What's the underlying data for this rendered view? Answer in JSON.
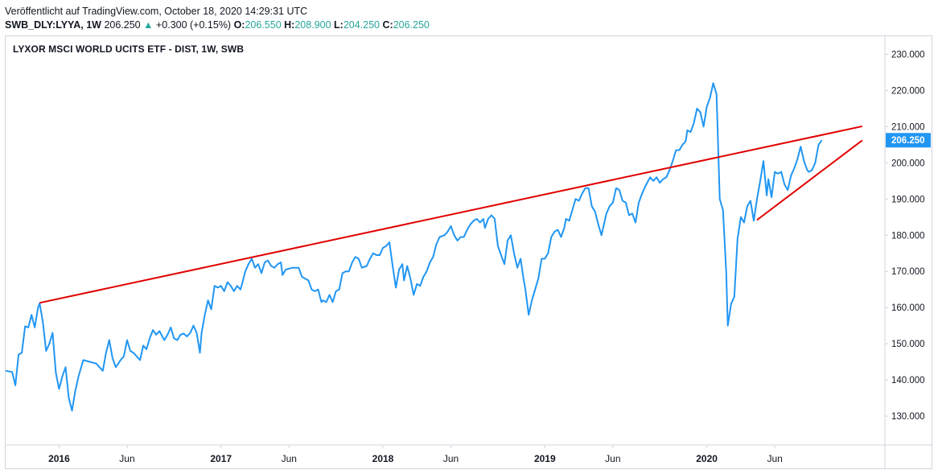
{
  "header": {
    "published": "Veröffentlicht auf TradingView.com, October 18, 2020 14:29:31 UTC",
    "symbol": "SWB_DLY:LYYA, 1W",
    "last": "206.250",
    "change_arrow": "▲",
    "change": "+0.300 (+0.15%)",
    "open_label": "O:",
    "open": "206.550",
    "high_label": "H:",
    "high": "208.900",
    "low_label": "L:",
    "low": "204.250",
    "close_label": "C:",
    "close": "206.250"
  },
  "colors": {
    "line": "#2196f3",
    "trendline": "#e00000",
    "up": "#26a69a",
    "grid": "#d1d4dc",
    "price_tag": "#2196f3"
  },
  "chart_data": {
    "type": "line",
    "title": "LYXOR MSCI WORLD UCITS ETF - DIST, 1W, SWB",
    "ylim": [
      122,
      235
    ],
    "y_ticks": [
      "130.000",
      "140.000",
      "150.000",
      "160.000",
      "170.000",
      "180.000",
      "190.000",
      "200.000",
      "210.000",
      "220.000",
      "230.000"
    ],
    "x_ticks": [
      {
        "label": "2016",
        "t": 2016.0
      },
      {
        "label": "Jun",
        "t": 2016.42
      },
      {
        "label": "2017",
        "t": 2017.0
      },
      {
        "label": "Jun",
        "t": 2017.42
      },
      {
        "label": "2018",
        "t": 2018.0
      },
      {
        "label": "Jun",
        "t": 2018.42
      },
      {
        "label": "2019",
        "t": 2019.0
      },
      {
        "label": "Jun",
        "t": 2019.42
      },
      {
        "label": "2020",
        "t": 2020.0
      },
      {
        "label": "Jun",
        "t": 2020.42
      }
    ],
    "xlim": [
      2015.67,
      2021.1
    ],
    "last_price_label": "206.250",
    "last_price": 206.25,
    "series": [
      {
        "name": "LYYA close",
        "points": [
          [
            2015.67,
            142.5
          ],
          [
            2015.71,
            142.2
          ],
          [
            2015.73,
            138.5
          ],
          [
            2015.75,
            147
          ],
          [
            2015.77,
            147.5
          ],
          [
            2015.79,
            154.8
          ],
          [
            2015.81,
            154.5
          ],
          [
            2015.83,
            158
          ],
          [
            2015.85,
            154.5
          ],
          [
            2015.87,
            160
          ],
          [
            2015.88,
            161.2
          ],
          [
            2015.9,
            156
          ],
          [
            2015.92,
            148
          ],
          [
            2015.94,
            150
          ],
          [
            2015.96,
            153
          ],
          [
            2015.98,
            142
          ],
          [
            2016.0,
            137.5
          ],
          [
            2016.02,
            141
          ],
          [
            2016.04,
            143.5
          ],
          [
            2016.06,
            135
          ],
          [
            2016.08,
            131.5
          ],
          [
            2016.1,
            137
          ],
          [
            2016.12,
            141
          ],
          [
            2016.15,
            145.5
          ],
          [
            2016.19,
            145
          ],
          [
            2016.23,
            144.5
          ],
          [
            2016.27,
            142.5
          ],
          [
            2016.29,
            147.5
          ],
          [
            2016.31,
            151
          ],
          [
            2016.33,
            146
          ],
          [
            2016.35,
            143.5
          ],
          [
            2016.38,
            145.5
          ],
          [
            2016.4,
            146.5
          ],
          [
            2016.42,
            151
          ],
          [
            2016.44,
            148
          ],
          [
            2016.46,
            147.5
          ],
          [
            2016.5,
            145.5
          ],
          [
            2016.52,
            149.5
          ],
          [
            2016.54,
            148.5
          ],
          [
            2016.56,
            151.5
          ],
          [
            2016.58,
            153.8
          ],
          [
            2016.6,
            152.5
          ],
          [
            2016.62,
            153.5
          ],
          [
            2016.65,
            151
          ],
          [
            2016.67,
            152.5
          ],
          [
            2016.69,
            154.5
          ],
          [
            2016.71,
            151.5
          ],
          [
            2016.73,
            151
          ],
          [
            2016.75,
            152.5
          ],
          [
            2016.77,
            152.8
          ],
          [
            2016.79,
            152
          ],
          [
            2016.81,
            153
          ],
          [
            2016.83,
            155
          ],
          [
            2016.85,
            153
          ],
          [
            2016.87,
            147.5
          ],
          [
            2016.88,
            153
          ],
          [
            2016.9,
            158
          ],
          [
            2016.92,
            162
          ],
          [
            2016.94,
            159.5
          ],
          [
            2016.96,
            166
          ],
          [
            2016.98,
            165.5
          ],
          [
            2017.0,
            166
          ],
          [
            2017.02,
            164.5
          ],
          [
            2017.04,
            167
          ],
          [
            2017.06,
            166
          ],
          [
            2017.08,
            164.5
          ],
          [
            2017.1,
            166
          ],
          [
            2017.12,
            165
          ],
          [
            2017.13,
            166.5
          ],
          [
            2017.15,
            170
          ],
          [
            2017.17,
            172
          ],
          [
            2017.19,
            173.5
          ],
          [
            2017.21,
            171
          ],
          [
            2017.23,
            172
          ],
          [
            2017.25,
            169.5
          ],
          [
            2017.27,
            172.5
          ],
          [
            2017.29,
            173
          ],
          [
            2017.31,
            171.5
          ],
          [
            2017.33,
            171
          ],
          [
            2017.35,
            172
          ],
          [
            2017.37,
            172.5
          ],
          [
            2017.38,
            169
          ],
          [
            2017.4,
            170.5
          ],
          [
            2017.44,
            171
          ],
          [
            2017.48,
            171
          ],
          [
            2017.5,
            168.5
          ],
          [
            2017.54,
            167.5
          ],
          [
            2017.56,
            165
          ],
          [
            2017.58,
            164.5
          ],
          [
            2017.6,
            165
          ],
          [
            2017.62,
            161.5
          ],
          [
            2017.63,
            162
          ],
          [
            2017.65,
            161.5
          ],
          [
            2017.67,
            163.5
          ],
          [
            2017.69,
            161.5
          ],
          [
            2017.71,
            164.5
          ],
          [
            2017.73,
            165
          ],
          [
            2017.75,
            169.5
          ],
          [
            2017.77,
            170
          ],
          [
            2017.79,
            170
          ],
          [
            2017.81,
            172.5
          ],
          [
            2017.83,
            174
          ],
          [
            2017.85,
            173.5
          ],
          [
            2017.87,
            171
          ],
          [
            2017.9,
            171.5
          ],
          [
            2017.92,
            173.5
          ],
          [
            2017.94,
            175
          ],
          [
            2017.96,
            174.5
          ],
          [
            2017.98,
            174.5
          ],
          [
            2018.0,
            176.5
          ],
          [
            2018.02,
            177
          ],
          [
            2018.04,
            178
          ],
          [
            2018.06,
            171.5
          ],
          [
            2018.08,
            165.5
          ],
          [
            2018.1,
            170.5
          ],
          [
            2018.12,
            172
          ],
          [
            2018.13,
            167.5
          ],
          [
            2018.15,
            171.5
          ],
          [
            2018.17,
            168
          ],
          [
            2018.19,
            163.5
          ],
          [
            2018.21,
            166.5
          ],
          [
            2018.23,
            166
          ],
          [
            2018.25,
            168.5
          ],
          [
            2018.27,
            170
          ],
          [
            2018.29,
            172.5
          ],
          [
            2018.31,
            174
          ],
          [
            2018.33,
            177.5
          ],
          [
            2018.35,
            179.5
          ],
          [
            2018.38,
            180
          ],
          [
            2018.4,
            181
          ],
          [
            2018.42,
            182.5
          ],
          [
            2018.44,
            180
          ],
          [
            2018.46,
            178.5
          ],
          [
            2018.48,
            179.5
          ],
          [
            2018.5,
            179.5
          ],
          [
            2018.52,
            181.5
          ],
          [
            2018.54,
            183
          ],
          [
            2018.56,
            184
          ],
          [
            2018.58,
            184.5
          ],
          [
            2018.6,
            183.5
          ],
          [
            2018.62,
            184.5
          ],
          [
            2018.63,
            182
          ],
          [
            2018.65,
            184.5
          ],
          [
            2018.67,
            185.5
          ],
          [
            2018.69,
            184.5
          ],
          [
            2018.71,
            177
          ],
          [
            2018.73,
            174.5
          ],
          [
            2018.75,
            172
          ],
          [
            2018.77,
            178.5
          ],
          [
            2018.79,
            180
          ],
          [
            2018.81,
            175
          ],
          [
            2018.83,
            171
          ],
          [
            2018.85,
            173.5
          ],
          [
            2018.87,
            167.5
          ],
          [
            2018.88,
            165
          ],
          [
            2018.9,
            158
          ],
          [
            2018.92,
            162
          ],
          [
            2018.94,
            165
          ],
          [
            2018.96,
            168
          ],
          [
            2018.98,
            173.5
          ],
          [
            2019.0,
            173.5
          ],
          [
            2019.02,
            175
          ],
          [
            2019.04,
            179.5
          ],
          [
            2019.06,
            181
          ],
          [
            2019.08,
            181.5
          ],
          [
            2019.1,
            179.5
          ],
          [
            2019.12,
            182
          ],
          [
            2019.13,
            184.5
          ],
          [
            2019.15,
            184
          ],
          [
            2019.17,
            187
          ],
          [
            2019.19,
            190
          ],
          [
            2019.21,
            189.5
          ],
          [
            2019.23,
            191.5
          ],
          [
            2019.25,
            193
          ],
          [
            2019.27,
            193
          ],
          [
            2019.29,
            188
          ],
          [
            2019.31,
            186.5
          ],
          [
            2019.33,
            183
          ],
          [
            2019.35,
            180
          ],
          [
            2019.38,
            186
          ],
          [
            2019.4,
            188
          ],
          [
            2019.42,
            189
          ],
          [
            2019.44,
            193
          ],
          [
            2019.46,
            192.5
          ],
          [
            2019.48,
            189.5
          ],
          [
            2019.5,
            189
          ],
          [
            2019.52,
            185.5
          ],
          [
            2019.54,
            186
          ],
          [
            2019.56,
            183.5
          ],
          [
            2019.58,
            189
          ],
          [
            2019.6,
            191.5
          ],
          [
            2019.62,
            193.5
          ],
          [
            2019.65,
            196
          ],
          [
            2019.67,
            195
          ],
          [
            2019.69,
            196
          ],
          [
            2019.71,
            194.5
          ],
          [
            2019.73,
            195.5
          ],
          [
            2019.75,
            196
          ],
          [
            2019.77,
            198
          ],
          [
            2019.79,
            200.5
          ],
          [
            2019.81,
            203.5
          ],
          [
            2019.83,
            203.5
          ],
          [
            2019.85,
            205
          ],
          [
            2019.87,
            206
          ],
          [
            2019.88,
            209
          ],
          [
            2019.9,
            208.5
          ],
          [
            2019.92,
            211
          ],
          [
            2019.94,
            215
          ],
          [
            2019.96,
            214
          ],
          [
            2019.98,
            210
          ],
          [
            2020.0,
            215.5
          ],
          [
            2020.02,
            218
          ],
          [
            2020.04,
            222
          ],
          [
            2020.06,
            219
          ],
          [
            2020.08,
            190
          ],
          [
            2020.1,
            187
          ],
          [
            2020.12,
            170
          ],
          [
            2020.13,
            155
          ],
          [
            2020.15,
            161
          ],
          [
            2020.17,
            163
          ],
          [
            2020.19,
            179
          ],
          [
            2020.21,
            185
          ],
          [
            2020.23,
            183.5
          ],
          [
            2020.25,
            188
          ],
          [
            2020.27,
            189.5
          ],
          [
            2020.29,
            184
          ],
          [
            2020.31,
            190
          ],
          [
            2020.33,
            195
          ],
          [
            2020.35,
            200.5
          ],
          [
            2020.37,
            191
          ],
          [
            2020.38,
            195.5
          ],
          [
            2020.4,
            190.5
          ],
          [
            2020.42,
            197.5
          ],
          [
            2020.44,
            197
          ],
          [
            2020.46,
            197.5
          ],
          [
            2020.48,
            194
          ],
          [
            2020.5,
            192.5
          ],
          [
            2020.52,
            196.5
          ],
          [
            2020.54,
            198.5
          ],
          [
            2020.56,
            201
          ],
          [
            2020.58,
            204.5
          ],
          [
            2020.6,
            200.5
          ],
          [
            2020.62,
            198
          ],
          [
            2020.63,
            197.5
          ],
          [
            2020.65,
            198
          ],
          [
            2020.67,
            200
          ],
          [
            2020.69,
            205
          ],
          [
            2020.71,
            206.25
          ]
        ]
      }
    ],
    "trendlines": [
      {
        "name": "resistance",
        "points": [
          [
            2015.88,
            161.3
          ],
          [
            2020.96,
            210.1
          ]
        ]
      },
      {
        "name": "support",
        "points": [
          [
            2020.31,
            184.2
          ],
          [
            2020.96,
            206.2
          ]
        ]
      }
    ]
  }
}
